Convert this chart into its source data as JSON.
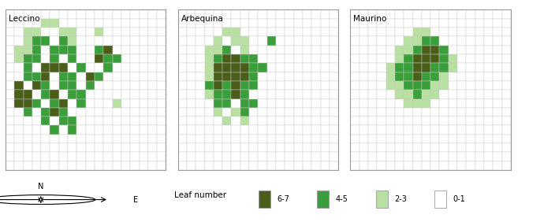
{
  "colors": {
    "6-7": "#4a5e1a",
    "4-5": "#3a9e3a",
    "2-3": "#b8e0a0",
    "0-1": "#ffffff",
    "grid_line": "#cccccc",
    "bg": "#ffffff"
  },
  "grid_size": 18,
  "panel_titles": [
    "Leccino",
    "Arbequina",
    "Maurino"
  ],
  "legend_labels": [
    "6-7",
    "4-5",
    "2-3",
    "0-1"
  ],
  "leccino": [
    [
      0,
      0,
      0,
      0,
      0,
      0,
      0,
      0,
      0,
      0,
      0,
      0,
      0,
      0,
      0,
      0,
      0,
      0
    ],
    [
      0,
      0,
      0,
      0,
      1,
      1,
      0,
      0,
      0,
      0,
      0,
      0,
      0,
      0,
      0,
      0,
      0,
      0
    ],
    [
      0,
      0,
      1,
      1,
      0,
      0,
      1,
      1,
      0,
      0,
      1,
      0,
      0,
      0,
      0,
      0,
      0,
      0
    ],
    [
      0,
      0,
      1,
      2,
      2,
      0,
      2,
      1,
      0,
      0,
      0,
      0,
      0,
      0,
      0,
      0,
      0,
      0
    ],
    [
      0,
      1,
      1,
      2,
      0,
      2,
      2,
      2,
      0,
      0,
      2,
      3,
      0,
      0,
      0,
      0,
      0,
      0
    ],
    [
      0,
      1,
      2,
      2,
      0,
      2,
      0,
      2,
      0,
      0,
      3,
      2,
      2,
      0,
      0,
      0,
      0,
      0
    ],
    [
      0,
      0,
      2,
      0,
      3,
      3,
      3,
      0,
      2,
      0,
      0,
      2,
      0,
      0,
      0,
      0,
      0,
      0
    ],
    [
      0,
      0,
      2,
      2,
      3,
      0,
      2,
      2,
      0,
      3,
      2,
      0,
      0,
      0,
      0,
      0,
      0,
      0
    ],
    [
      0,
      3,
      0,
      3,
      2,
      0,
      2,
      2,
      0,
      2,
      0,
      0,
      0,
      0,
      0,
      0,
      0,
      0
    ],
    [
      0,
      3,
      3,
      0,
      2,
      3,
      0,
      2,
      2,
      0,
      0,
      0,
      0,
      0,
      0,
      0,
      0,
      0
    ],
    [
      0,
      3,
      3,
      2,
      0,
      2,
      3,
      0,
      2,
      0,
      0,
      0,
      1,
      0,
      0,
      0,
      0,
      0
    ],
    [
      0,
      0,
      2,
      0,
      2,
      3,
      2,
      0,
      0,
      0,
      0,
      0,
      0,
      0,
      0,
      0,
      0,
      0
    ],
    [
      0,
      0,
      0,
      0,
      2,
      0,
      2,
      2,
      0,
      0,
      0,
      0,
      0,
      0,
      0,
      0,
      0,
      0
    ],
    [
      0,
      0,
      0,
      0,
      0,
      2,
      0,
      2,
      0,
      0,
      0,
      0,
      0,
      0,
      0,
      0,
      0,
      0
    ],
    [
      0,
      0,
      0,
      0,
      0,
      0,
      0,
      0,
      0,
      0,
      0,
      0,
      0,
      0,
      0,
      0,
      0,
      0
    ],
    [
      0,
      0,
      0,
      0,
      0,
      0,
      0,
      0,
      0,
      0,
      0,
      0,
      0,
      0,
      0,
      0,
      0,
      0
    ],
    [
      0,
      0,
      0,
      0,
      0,
      0,
      0,
      0,
      0,
      0,
      0,
      0,
      0,
      0,
      0,
      0,
      0,
      0
    ],
    [
      0,
      0,
      0,
      0,
      0,
      0,
      0,
      0,
      0,
      0,
      0,
      0,
      0,
      0,
      0,
      0,
      0,
      0
    ]
  ],
  "arbequina": [
    [
      0,
      0,
      0,
      0,
      0,
      0,
      0,
      0,
      0,
      0,
      0,
      0,
      0,
      0,
      0,
      0,
      0,
      0
    ],
    [
      0,
      0,
      0,
      0,
      0,
      0,
      0,
      0,
      0,
      0,
      0,
      0,
      0,
      0,
      0,
      0,
      0,
      0
    ],
    [
      0,
      0,
      0,
      0,
      0,
      1,
      1,
      0,
      0,
      0,
      0,
      0,
      0,
      0,
      0,
      0,
      0,
      0
    ],
    [
      0,
      0,
      0,
      0,
      1,
      0,
      1,
      1,
      0,
      0,
      2,
      0,
      0,
      0,
      0,
      0,
      0,
      0
    ],
    [
      0,
      0,
      0,
      1,
      1,
      2,
      0,
      1,
      0,
      0,
      0,
      0,
      0,
      0,
      0,
      0,
      0,
      0
    ],
    [
      0,
      0,
      0,
      1,
      2,
      3,
      3,
      2,
      2,
      0,
      0,
      0,
      0,
      0,
      0,
      0,
      0,
      0
    ],
    [
      0,
      0,
      0,
      1,
      3,
      3,
      3,
      3,
      2,
      2,
      0,
      0,
      0,
      0,
      0,
      0,
      0,
      0
    ],
    [
      0,
      0,
      0,
      1,
      3,
      3,
      3,
      3,
      2,
      0,
      0,
      0,
      0,
      0,
      0,
      0,
      0,
      0
    ],
    [
      0,
      0,
      0,
      2,
      3,
      2,
      3,
      2,
      2,
      0,
      0,
      0,
      0,
      0,
      0,
      0,
      0,
      0
    ],
    [
      0,
      0,
      0,
      1,
      2,
      2,
      3,
      2,
      0,
      0,
      0,
      0,
      0,
      0,
      0,
      0,
      0,
      0
    ],
    [
      0,
      0,
      0,
      0,
      2,
      2,
      0,
      2,
      2,
      0,
      0,
      0,
      0,
      0,
      0,
      0,
      0,
      0
    ],
    [
      0,
      0,
      0,
      0,
      1,
      0,
      1,
      2,
      0,
      0,
      0,
      0,
      0,
      0,
      0,
      0,
      0,
      0
    ],
    [
      0,
      0,
      0,
      0,
      0,
      1,
      0,
      1,
      0,
      0,
      0,
      0,
      0,
      0,
      0,
      0,
      0,
      0
    ],
    [
      0,
      0,
      0,
      0,
      0,
      0,
      0,
      0,
      0,
      0,
      0,
      0,
      0,
      0,
      0,
      0,
      0,
      0
    ],
    [
      0,
      0,
      0,
      0,
      0,
      0,
      0,
      0,
      0,
      0,
      0,
      0,
      0,
      0,
      0,
      0,
      0,
      0
    ],
    [
      0,
      0,
      0,
      0,
      0,
      0,
      0,
      0,
      0,
      0,
      0,
      0,
      0,
      0,
      0,
      0,
      0,
      0
    ],
    [
      0,
      0,
      0,
      0,
      0,
      0,
      0,
      0,
      0,
      0,
      0,
      0,
      0,
      0,
      0,
      0,
      0,
      0
    ],
    [
      0,
      0,
      0,
      0,
      0,
      0,
      0,
      0,
      0,
      0,
      0,
      0,
      0,
      0,
      0,
      0,
      0,
      0
    ]
  ],
  "maurino": [
    [
      0,
      0,
      0,
      0,
      0,
      0,
      0,
      0,
      0,
      0,
      0,
      0,
      0,
      0,
      0,
      0,
      0,
      0
    ],
    [
      0,
      0,
      0,
      0,
      0,
      0,
      0,
      0,
      0,
      0,
      0,
      0,
      0,
      0,
      0,
      0,
      0,
      0
    ],
    [
      0,
      0,
      0,
      0,
      0,
      0,
      0,
      1,
      1,
      0,
      0,
      0,
      0,
      0,
      0,
      0,
      0,
      0
    ],
    [
      0,
      0,
      0,
      0,
      0,
      0,
      1,
      1,
      2,
      2,
      0,
      0,
      0,
      0,
      0,
      0,
      0,
      0
    ],
    [
      0,
      0,
      0,
      0,
      0,
      1,
      1,
      2,
      3,
      3,
      2,
      0,
      0,
      0,
      0,
      0,
      0,
      0
    ],
    [
      0,
      0,
      0,
      0,
      0,
      1,
      2,
      3,
      3,
      3,
      2,
      1,
      0,
      0,
      0,
      0,
      0,
      0
    ],
    [
      0,
      0,
      0,
      0,
      1,
      2,
      2,
      3,
      3,
      2,
      2,
      1,
      0,
      0,
      0,
      0,
      0,
      0
    ],
    [
      0,
      0,
      0,
      0,
      1,
      2,
      2,
      3,
      2,
      2,
      1,
      0,
      0,
      0,
      0,
      0,
      0,
      0
    ],
    [
      0,
      0,
      0,
      0,
      1,
      1,
      2,
      2,
      2,
      1,
      1,
      0,
      0,
      0,
      0,
      0,
      0,
      0
    ],
    [
      0,
      0,
      0,
      0,
      0,
      1,
      1,
      2,
      1,
      1,
      0,
      0,
      0,
      0,
      0,
      0,
      0,
      0
    ],
    [
      0,
      0,
      0,
      0,
      0,
      0,
      1,
      1,
      1,
      0,
      0,
      0,
      0,
      0,
      0,
      0,
      0,
      0
    ],
    [
      0,
      0,
      0,
      0,
      0,
      0,
      0,
      0,
      0,
      0,
      0,
      0,
      0,
      0,
      0,
      0,
      0,
      0
    ],
    [
      0,
      0,
      0,
      0,
      0,
      0,
      0,
      0,
      0,
      0,
      0,
      0,
      0,
      0,
      0,
      0,
      0,
      0
    ],
    [
      0,
      0,
      0,
      0,
      0,
      0,
      0,
      0,
      0,
      0,
      0,
      0,
      0,
      0,
      0,
      0,
      0,
      0
    ],
    [
      0,
      0,
      0,
      0,
      0,
      0,
      0,
      0,
      0,
      0,
      0,
      0,
      0,
      0,
      0,
      0,
      0,
      0
    ],
    [
      0,
      0,
      0,
      0,
      0,
      0,
      0,
      0,
      0,
      0,
      0,
      0,
      0,
      0,
      0,
      0,
      0,
      0
    ],
    [
      0,
      0,
      0,
      0,
      0,
      0,
      0,
      0,
      0,
      0,
      0,
      0,
      0,
      0,
      0,
      0,
      0,
      0
    ],
    [
      0,
      0,
      0,
      0,
      0,
      0,
      0,
      0,
      0,
      0,
      0,
      0,
      0,
      0,
      0,
      0,
      0,
      0
    ]
  ]
}
